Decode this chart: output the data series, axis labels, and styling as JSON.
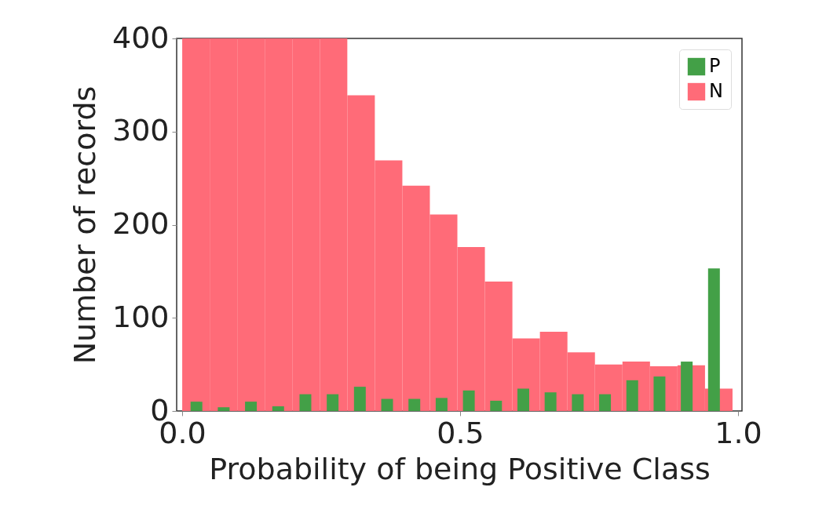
{
  "chart_data": {
    "type": "histogram",
    "xlabel": "Probability of being Positive Class",
    "ylabel": "Number of records",
    "xlim": [
      -0.01,
      1.007
    ],
    "xticks": [
      {
        "value": 0,
        "label": "0.0"
      },
      {
        "value": 0.5,
        "label": "0.5"
      },
      {
        "value": 1,
        "label": "1.0"
      }
    ],
    "ylim": [
      0,
      400
    ],
    "yticks": [
      0,
      100,
      200,
      300,
      400
    ],
    "grid": false,
    "legend": "top right",
    "bins": [
      0,
      0.0495,
      0.099,
      0.1485,
      0.198,
      0.2475,
      0.297,
      0.3465,
      0.396,
      0.4455,
      0.495,
      0.5445,
      0.594,
      0.6435,
      0.693,
      0.7425,
      0.792,
      0.8415,
      0.891,
      0.9405,
      0.99
    ],
    "series": [
      {
        "name": "P",
        "type": "bar",
        "color": "#43a047",
        "x": [
          0.0256,
          0.0746,
          0.1236,
          0.1726,
          0.2216,
          0.2706,
          0.3196,
          0.3686,
          0.4176,
          0.4666,
          0.5156,
          0.5646,
          0.6136,
          0.6626,
          0.7116,
          0.7606,
          0.8096,
          0.8586,
          0.9076,
          0.9566
        ],
        "values": [
          10,
          4,
          10,
          5,
          18,
          18,
          26,
          13,
          13,
          14,
          22,
          11,
          24,
          20,
          18,
          18,
          33,
          37,
          53,
          153
        ]
      },
      {
        "name": "N",
        "color": "#ff6b78",
        "values": [
          400,
          400,
          400,
          400,
          400,
          400,
          339,
          269,
          242,
          211,
          176,
          139,
          78,
          85,
          63,
          50,
          53,
          48,
          49,
          24
        ]
      }
    ]
  }
}
